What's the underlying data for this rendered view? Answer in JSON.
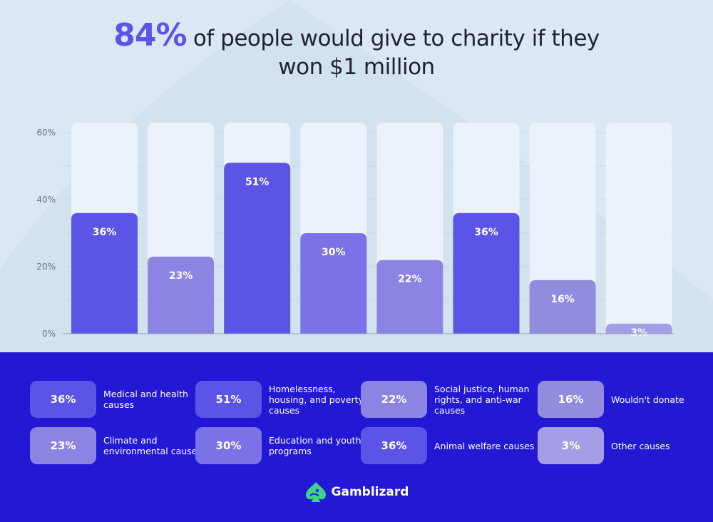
{
  "title": {
    "highlight": "84%",
    "rest_line1": "of people would give to charity if they",
    "line2": "won $1 million"
  },
  "colors": {
    "accent": "#5b54e6",
    "bar_primary": "#5b54e6",
    "bar_secondary": "#8b84e3",
    "bar_muted": "#a39ee6",
    "bottom_bg": "#2319d4",
    "top_bg": "#dbe8f3",
    "brand_icon": "#3fd28a"
  },
  "chart_data": {
    "type": "bar",
    "title": "84% of people would give to charity if they won $1 million",
    "categories": [
      "Medical and health causes",
      "Climate and environmental causes",
      "Homelessness, housing, and poverty causes",
      "Education and youth programs",
      "Social justice, human rights, and anti-war causes",
      "Animal welfare causes",
      "Wouldn't donate",
      "Other causes"
    ],
    "values": [
      36,
      23,
      51,
      30,
      22,
      36,
      16,
      3
    ],
    "value_labels": [
      "36%",
      "23%",
      "51%",
      "30%",
      "22%",
      "36%",
      "16%",
      "3%"
    ],
    "bar_colors": [
      "#5b54e6",
      "#8b84e3",
      "#5b54e6",
      "#7a72e6",
      "#8b84e3",
      "#5b54e6",
      "#928cdf",
      "#a39ee6"
    ],
    "ylim": [
      0,
      60
    ],
    "yticks": [
      0,
      20,
      40,
      60
    ],
    "ytick_labels": [
      "0%",
      "20%",
      "40%",
      "60%"
    ],
    "xlabel": "",
    "ylabel": "",
    "grid": true
  },
  "legend": [
    {
      "value": "36%",
      "label": "Medical and health causes",
      "color": "#5b54e6"
    },
    {
      "value": "23%",
      "label": "Climate and environmental causes",
      "color": "#8b84e3"
    },
    {
      "value": "51%",
      "label": "Homelessness, housing, and poverty causes",
      "color": "#5b54e6"
    },
    {
      "value": "30%",
      "label": "Education and youth programs",
      "color": "#7a72e6"
    },
    {
      "value": "22%",
      "label": "Social justice, human rights, and anti-war causes",
      "color": "#8b84e3"
    },
    {
      "value": "36%",
      "label": "Animal welfare causes",
      "color": "#5b54e6"
    },
    {
      "value": "16%",
      "label": "Wouldn't donate",
      "color": "#928cdf"
    },
    {
      "value": "3%",
      "label": "Other causes",
      "color": "#a39ee6"
    }
  ],
  "brand": {
    "name": "Gamblizard",
    "icon": "spade-lizard-logo"
  }
}
